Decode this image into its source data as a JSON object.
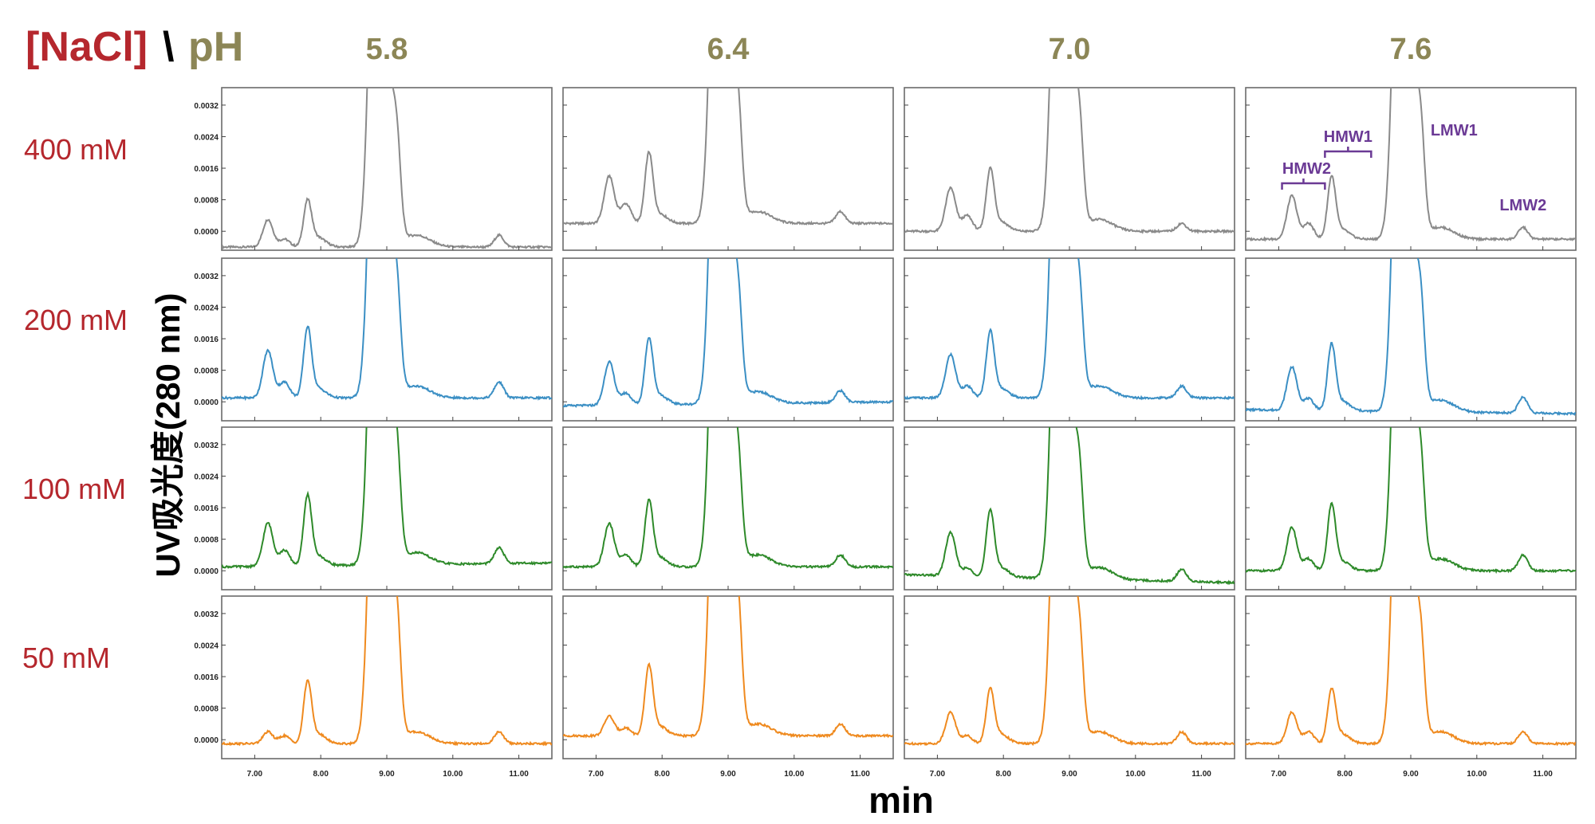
{
  "header": {
    "nacl": "[NaCl]",
    "separator": "\\",
    "ph": "pH"
  },
  "colors": {
    "nacl": "#b5272d",
    "ph": "#8c8656",
    "annotation": "#6b3a95",
    "series": [
      "#8a8a8a",
      "#3b8fc4",
      "#2e8a2a",
      "#ef8a1f"
    ]
  },
  "annotations": [
    {
      "label": "HMW2",
      "x": [
        7.05,
        7.7
      ]
    },
    {
      "label": "HMW1",
      "x": [
        7.7,
        8.4
      ]
    },
    {
      "label": "LMW1",
      "x": 9.3
    },
    {
      "label": "LMW2",
      "x": 10.7
    }
  ],
  "chart_data": {
    "type": "line",
    "columns": [
      "5.8",
      "6.4",
      "7.0",
      "7.6"
    ],
    "rows": [
      "400 mM",
      "200 mM",
      "100 mM",
      "50 mM"
    ],
    "xlabel": "min",
    "ylabel": "UV吸光度(280 nm)",
    "xlim": [
      6.5,
      11.5
    ],
    "ylim": [
      -0.0004,
      0.0034
    ],
    "xticks": [
      "7.00",
      "8.00",
      "9.00",
      "10.00",
      "11.00"
    ],
    "yticks": [
      "0.0000",
      "0.0008",
      "0.0016",
      "0.0024",
      "0.0032"
    ],
    "peak_positions_min": [
      7.2,
      7.45,
      7.8,
      8.85,
      9.15,
      10.7
    ],
    "series": [
      {
        "row": "400 mM",
        "col": "5.8",
        "baseline": [
          -0.0004,
          -0.0004
        ],
        "peaks": [
          0.0007,
          0.0002,
          0.0011,
          0.012,
          0.0021,
          0.0003
        ]
      },
      {
        "row": "400 mM",
        "col": "6.4",
        "baseline": [
          0.0002,
          0.0002
        ],
        "peaks": [
          0.0012,
          0.0005,
          0.0017,
          0.012,
          0.0023,
          0.0003
        ]
      },
      {
        "row": "400 mM",
        "col": "7.0",
        "baseline": [
          0.0,
          0.0
        ],
        "peaks": [
          0.0011,
          0.0004,
          0.0015,
          0.012,
          0.0021,
          0.0002
        ]
      },
      {
        "row": "400 mM",
        "col": "7.6",
        "baseline": [
          -0.0002,
          -0.0002
        ],
        "peaks": [
          0.0011,
          0.0004,
          0.0015,
          0.012,
          0.0022,
          0.0003
        ]
      },
      {
        "row": "200 mM",
        "col": "5.8",
        "baseline": [
          0.0001,
          0.0001
        ],
        "peaks": [
          0.0012,
          0.0004,
          0.0017,
          0.012,
          0.0022,
          0.0004
        ]
      },
      {
        "row": "200 mM",
        "col": "6.4",
        "baseline": [
          -0.0001,
          0.0
        ],
        "peaks": [
          0.0011,
          0.0003,
          0.0016,
          0.012,
          0.0021,
          0.0003
        ]
      },
      {
        "row": "200 mM",
        "col": "7.0",
        "baseline": [
          0.0001,
          0.0001
        ],
        "peaks": [
          0.0011,
          0.0003,
          0.0016,
          0.012,
          0.002,
          0.0003
        ]
      },
      {
        "row": "200 mM",
        "col": "7.6",
        "baseline": [
          -0.0002,
          -0.0003
        ],
        "peaks": [
          0.0011,
          0.0003,
          0.0016,
          0.012,
          0.0021,
          0.0004
        ]
      },
      {
        "row": "100 mM",
        "col": "5.8",
        "baseline": [
          0.0001,
          0.0002
        ],
        "peaks": [
          0.0011,
          0.0004,
          0.0017,
          0.012,
          0.0023,
          0.0004
        ]
      },
      {
        "row": "100 mM",
        "col": "6.4",
        "baseline": [
          0.0001,
          0.0001
        ],
        "peaks": [
          0.0011,
          0.0003,
          0.0016,
          0.012,
          0.0021,
          0.0003
        ]
      },
      {
        "row": "100 mM",
        "col": "7.0",
        "baseline": [
          -0.0001,
          -0.0003
        ],
        "peaks": [
          0.0011,
          0.0002,
          0.0016,
          0.012,
          0.002,
          0.0003
        ]
      },
      {
        "row": "100 mM",
        "col": "7.6",
        "baseline": [
          0.0,
          0.0
        ],
        "peaks": [
          0.0011,
          0.0003,
          0.0016,
          0.012,
          0.0021,
          0.0004
        ]
      },
      {
        "row": "50 mM",
        "col": "5.8",
        "baseline": [
          -0.0001,
          -0.0001
        ],
        "peaks": [
          0.0003,
          0.0002,
          0.0015,
          0.012,
          0.0026,
          0.0003
        ]
      },
      {
        "row": "50 mM",
        "col": "6.4",
        "baseline": [
          0.0001,
          0.0001
        ],
        "peaks": [
          0.0005,
          0.0002,
          0.0017,
          0.012,
          0.0026,
          0.0003
        ]
      },
      {
        "row": "50 mM",
        "col": "7.0",
        "baseline": [
          -0.0001,
          -0.0001
        ],
        "peaks": [
          0.0008,
          0.0002,
          0.0013,
          0.012,
          0.0021,
          0.0003
        ]
      },
      {
        "row": "50 mM",
        "col": "7.6",
        "baseline": [
          -0.0001,
          -0.0001
        ],
        "peaks": [
          0.0008,
          0.0003,
          0.0013,
          0.012,
          0.002,
          0.0003
        ]
      }
    ]
  }
}
